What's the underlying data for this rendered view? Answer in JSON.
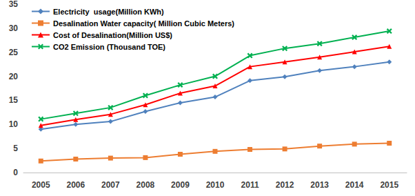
{
  "chart_data": {
    "type": "line",
    "categories": [
      "2005",
      "2006",
      "2007",
      "2008",
      "2009",
      "2010",
      "2011",
      "2012",
      "2013",
      "2014",
      "2015"
    ],
    "series": [
      {
        "name": "Electricity  usage(Million KWh)",
        "color": "#4f81bd",
        "marker": "diamond",
        "values": [
          9.0,
          10.0,
          10.6,
          12.7,
          14.5,
          15.7,
          19.1,
          19.9,
          21.2,
          22.0,
          23.0
        ]
      },
      {
        "name": "Desalination Water capacity( Million Cubic Meters)",
        "color": "#ed7d31",
        "marker": "square",
        "values": [
          2.4,
          2.8,
          3.0,
          3.1,
          3.8,
          4.4,
          4.8,
          4.9,
          5.5,
          5.9,
          6.1
        ]
      },
      {
        "name": "Cost of Desalination(Million US$)",
        "color": "#ff0000",
        "marker": "triangle",
        "values": [
          9.8,
          11.0,
          12.1,
          14.1,
          16.5,
          18.0,
          22.0,
          23.0,
          24.0,
          25.1,
          26.2
        ]
      },
      {
        "name": "CO2 Emission (Thousand TOE)",
        "color": "#00b050",
        "marker": "x",
        "values": [
          11.1,
          12.3,
          13.5,
          16.0,
          18.2,
          20.0,
          24.3,
          25.8,
          26.8,
          28.1,
          29.4
        ]
      }
    ],
    "ylim": [
      0,
      35
    ],
    "yticks": [
      0,
      5,
      10,
      15,
      20,
      25,
      30,
      35
    ],
    "grid": false,
    "legend": "top-left"
  }
}
